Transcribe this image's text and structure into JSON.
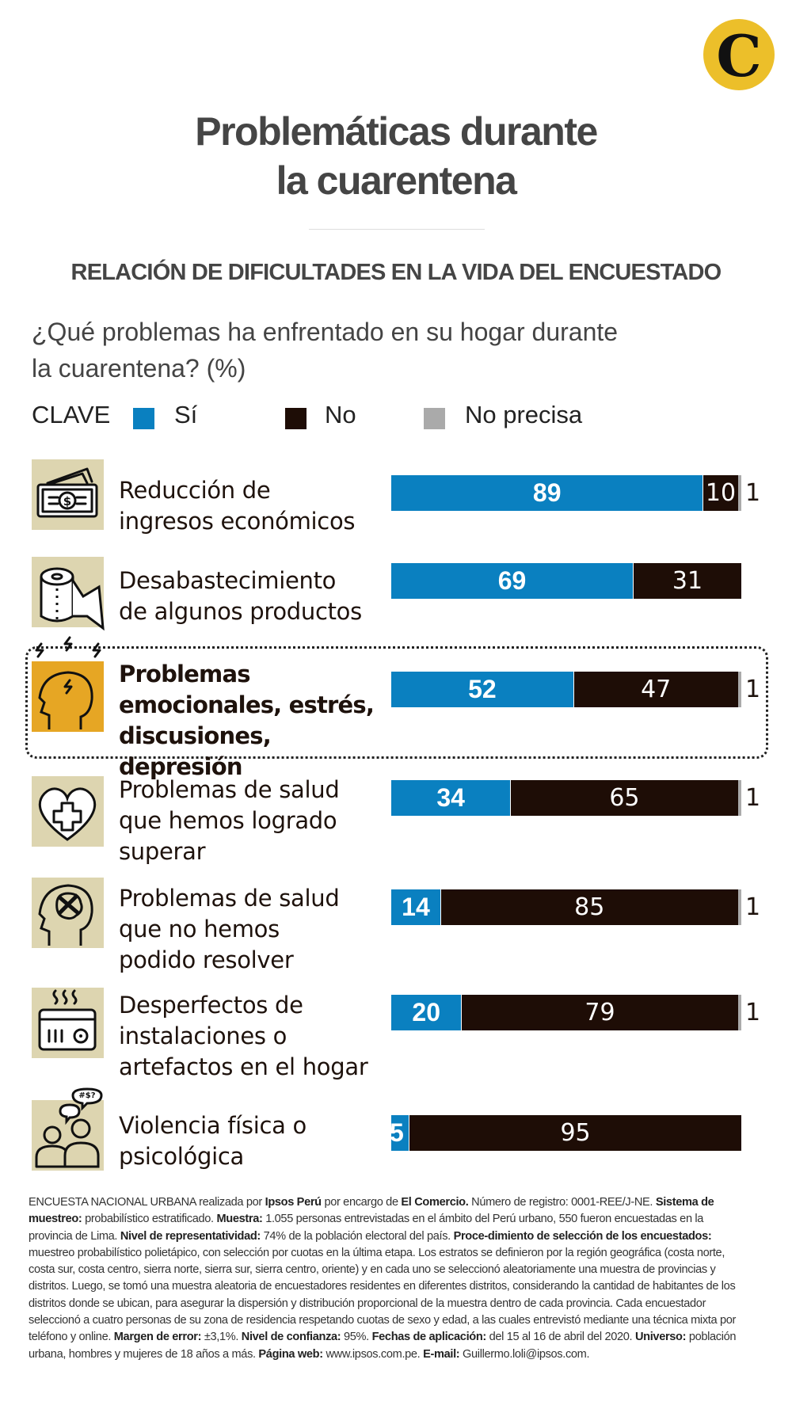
{
  "logo": {
    "letter": "C",
    "color": "#ecbf2a"
  },
  "title_lines": [
    "Problemáticas durante",
    "la cuarentena"
  ],
  "subtitle": "RELACIÓN DE DIFICULTADES EN LA VIDA DEL ENCUESTADO",
  "question_lines": [
    "¿Qué problemas ha enfrentado en su hogar durante",
    "la cuarentena? (%)"
  ],
  "legend": {
    "title": "CLAVE",
    "items": [
      {
        "label": "Sí",
        "color": "#0a80c0"
      },
      {
        "label": "No",
        "color": "#1e0d06"
      },
      {
        "label": "No precisa",
        "color": "#aaaaaa"
      }
    ]
  },
  "chart_data": {
    "type": "bar",
    "orientation": "horizontal-stacked",
    "unit": "%",
    "xlim": [
      0,
      100
    ],
    "categories": [
      {
        "lines": [
          "Reducción de",
          "ingresos económicos"
        ],
        "icon": "money-bills-icon",
        "highlight": false
      },
      {
        "lines": [
          "Desabastecimiento",
          "de algunos productos"
        ],
        "icon": "toilet-paper-icon",
        "highlight": false
      },
      {
        "lines": [
          "Problemas",
          "emocionales, estrés,",
          "discusiones, depresión"
        ],
        "icon": "stressed-head-icon",
        "highlight": true
      },
      {
        "lines": [
          "Problemas de salud",
          "que hemos logrado",
          "superar"
        ],
        "icon": "heart-medical-cross-icon",
        "highlight": false
      },
      {
        "lines": [
          "Problemas de salud",
          "que no hemos",
          "podido resolver"
        ],
        "icon": "bandaged-brain-head-icon",
        "highlight": false
      },
      {
        "lines": [
          "Desperfectos de",
          "instalaciones o",
          "artefactos en el hogar"
        ],
        "icon": "broken-radio-icon",
        "highlight": false
      },
      {
        "lines": [
          "Violencia física o",
          "psicológica"
        ],
        "icon": "arguing-people-icon",
        "highlight": false
      }
    ],
    "series": [
      {
        "name": "Sí",
        "color": "#0a80c0",
        "values": [
          89,
          69,
          52,
          34,
          14,
          20,
          5
        ]
      },
      {
        "name": "No",
        "color": "#1e0d06",
        "values": [
          10,
          31,
          47,
          65,
          85,
          79,
          95
        ]
      },
      {
        "name": "No precisa",
        "color": "#aaaaaa",
        "values": [
          1,
          0,
          1,
          1,
          1,
          1,
          0
        ]
      }
    ],
    "colors": {
      "icon_bg": "#ddd5b0",
      "icon_bg_highlight": "#e6a624"
    }
  },
  "footnote": [
    {
      "t": "ENCUESTA NACIONAL URBANA realizada por "
    },
    {
      "b": "Ipsos Perú"
    },
    {
      "t": " por encargo de "
    },
    {
      "b": "El Comercio."
    },
    {
      "t": " Número de registro: 0001-REE/J-NE. "
    },
    {
      "b": "Sistema de muestreo:"
    },
    {
      "t": " probabilístico estratificado. "
    },
    {
      "b": "Muestra:"
    },
    {
      "t": " 1.055 personas entrevistadas en el ámbito del Perú urbano, 550 fueron encuestadas en la provincia de Lima. "
    },
    {
      "b": "Nivel de representatividad:"
    },
    {
      "t": " 74% de la población electoral del país. "
    },
    {
      "b": "Proce-dimiento de selección de los encuestados:"
    },
    {
      "t": " muestreo probabilístico polietápico, con selección por cuotas en la última etapa. Los estratos se definieron por la región geográfica (costa norte, costa sur, costa centro, sierra norte, sierra sur, sierra centro, oriente) y en cada uno se seleccionó aleatoriamente una muestra de provincias y distritos. Luego, se tomó una muestra aleatoria de encuestadores residentes en diferentes distritos, considerando la cantidad de habitantes de los distritos donde se ubican, para asegurar la dispersión y distribución proporcional de la muestra dentro de cada provincia. Cada encuestador seleccionó a cuatro personas de su zona de residencia respetando cuotas de sexo y edad, a las cuales entrevistó mediante una técnica mixta por teléfono y online. "
    },
    {
      "b": "Margen de error:"
    },
    {
      "t": " ±3,1%. "
    },
    {
      "b": "Nivel de confianza:"
    },
    {
      "t": " 95%. "
    },
    {
      "b": "Fechas de aplicación:"
    },
    {
      "t": " del 15 al 16 de abril del 2020. "
    },
    {
      "b": "Universo:"
    },
    {
      "t": " población urbana, hombres y mujeres de 18 años a más. "
    },
    {
      "b": "Página web:"
    },
    {
      "t": " www.ipsos.com.pe. "
    },
    {
      "b": "E-mail:"
    },
    {
      "t": " Guillermo.loli@ipsos.com."
    }
  ]
}
